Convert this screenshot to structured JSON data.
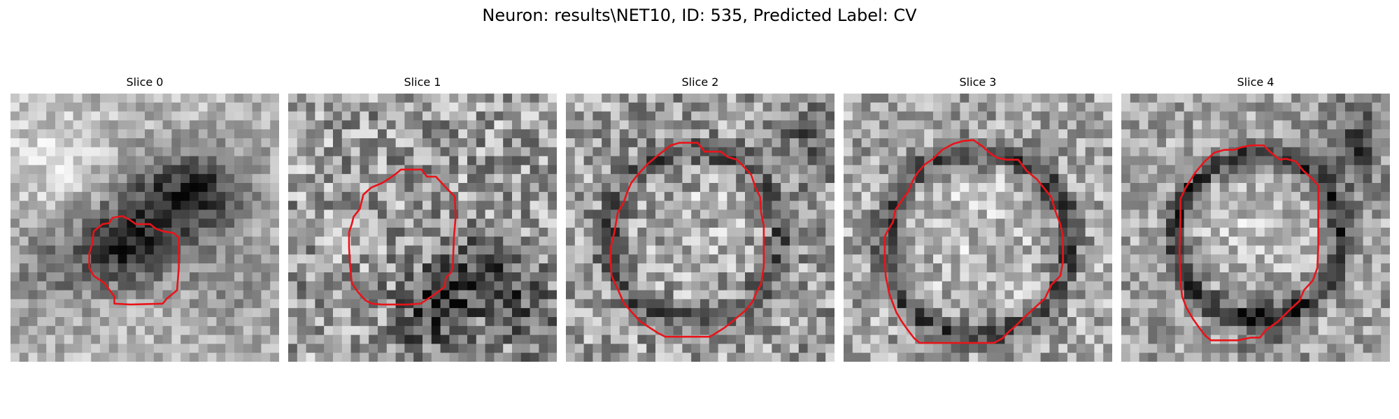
{
  "figure": {
    "title": "Neuron: results\\NET10, ID: 535, Predicted Label: CV"
  },
  "panels": [
    {
      "title": "Slice 0",
      "texture": "diffuse dark blob toward center and upper right"
    },
    {
      "title": "Slice 1",
      "texture": "noisy texture with dark blobs lower right"
    },
    {
      "title": "Slice 2",
      "texture": "bright interior enclosed by a darker ring"
    },
    {
      "title": "Slice 3",
      "texture": "bright interior enclosed by a darker ring"
    },
    {
      "title": "Slice 4",
      "texture": "bright interior enclosed by a strong dark ring"
    }
  ],
  "colors": {
    "contour": "#e8141a",
    "background": "#ffffff"
  },
  "grid_size": 30
}
